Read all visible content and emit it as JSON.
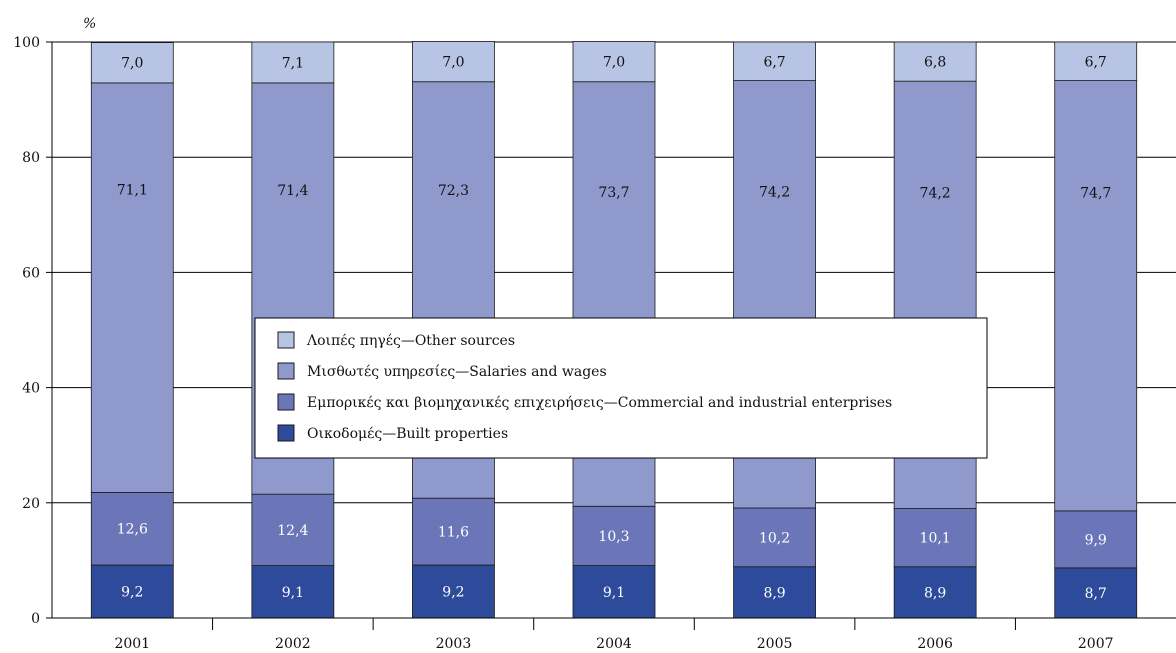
{
  "chart_data": {
    "type": "bar",
    "stacked": true,
    "ylabel": "%",
    "ylim": [
      0,
      100
    ],
    "yticks": [
      0,
      20,
      40,
      60,
      80,
      100
    ],
    "grid": true,
    "categories": [
      "2001",
      "2002",
      "2003",
      "2004",
      "2005",
      "2006",
      "2007"
    ],
    "series": [
      {
        "name": "Οικοδομές—Built properties",
        "color": "#2e4a9a",
        "label_color": "#ffffff",
        "values": [
          9.2,
          9.1,
          9.2,
          9.1,
          8.9,
          8.9,
          8.7
        ],
        "labels": [
          "9,2",
          "9,1",
          "9,2",
          "9,1",
          "8,9",
          "8,9",
          "8,7"
        ]
      },
      {
        "name": "Εμπορικές και βιομηχανικές επιχειρήσεις—Commercial and industrial enterprises",
        "color": "#6b76b8",
        "label_color": "#ffffff",
        "values": [
          12.6,
          12.4,
          11.6,
          10.3,
          10.2,
          10.1,
          9.9
        ],
        "labels": [
          "12,6",
          "12,4",
          "11,6",
          "10,3",
          "10,2",
          "10,1",
          "9,9"
        ]
      },
      {
        "name": "Μισθωτές υπηρεσίες—Salaries and wages",
        "color": "#9099cc",
        "label_color": "#111111",
        "values": [
          71.1,
          71.4,
          72.3,
          73.7,
          74.2,
          74.2,
          74.7
        ],
        "labels": [
          "71,1",
          "71,4",
          "72,3",
          "73,7",
          "74,2",
          "74,2",
          "74,7"
        ]
      },
      {
        "name": "Λοιπές πηγές—Other sources",
        "color": "#b8c4e4",
        "label_color": "#111111",
        "values": [
          7.0,
          7.1,
          7.0,
          7.0,
          6.7,
          6.8,
          6.7
        ],
        "labels": [
          "7,0",
          "7,1",
          "7,0",
          "7,0",
          "6,7",
          "6,8",
          "6,7"
        ]
      }
    ],
    "legend": {
      "placement": "center",
      "items": [
        "Λοιπές πηγές—Other sources",
        "Μισθωτές υπηρεσίες—Salaries and wages",
        "Εμπορικές και βιομηχανικές επιχειρήσεις—Commercial and industrial enterprises",
        "Οικοδομές—Built properties"
      ]
    }
  }
}
